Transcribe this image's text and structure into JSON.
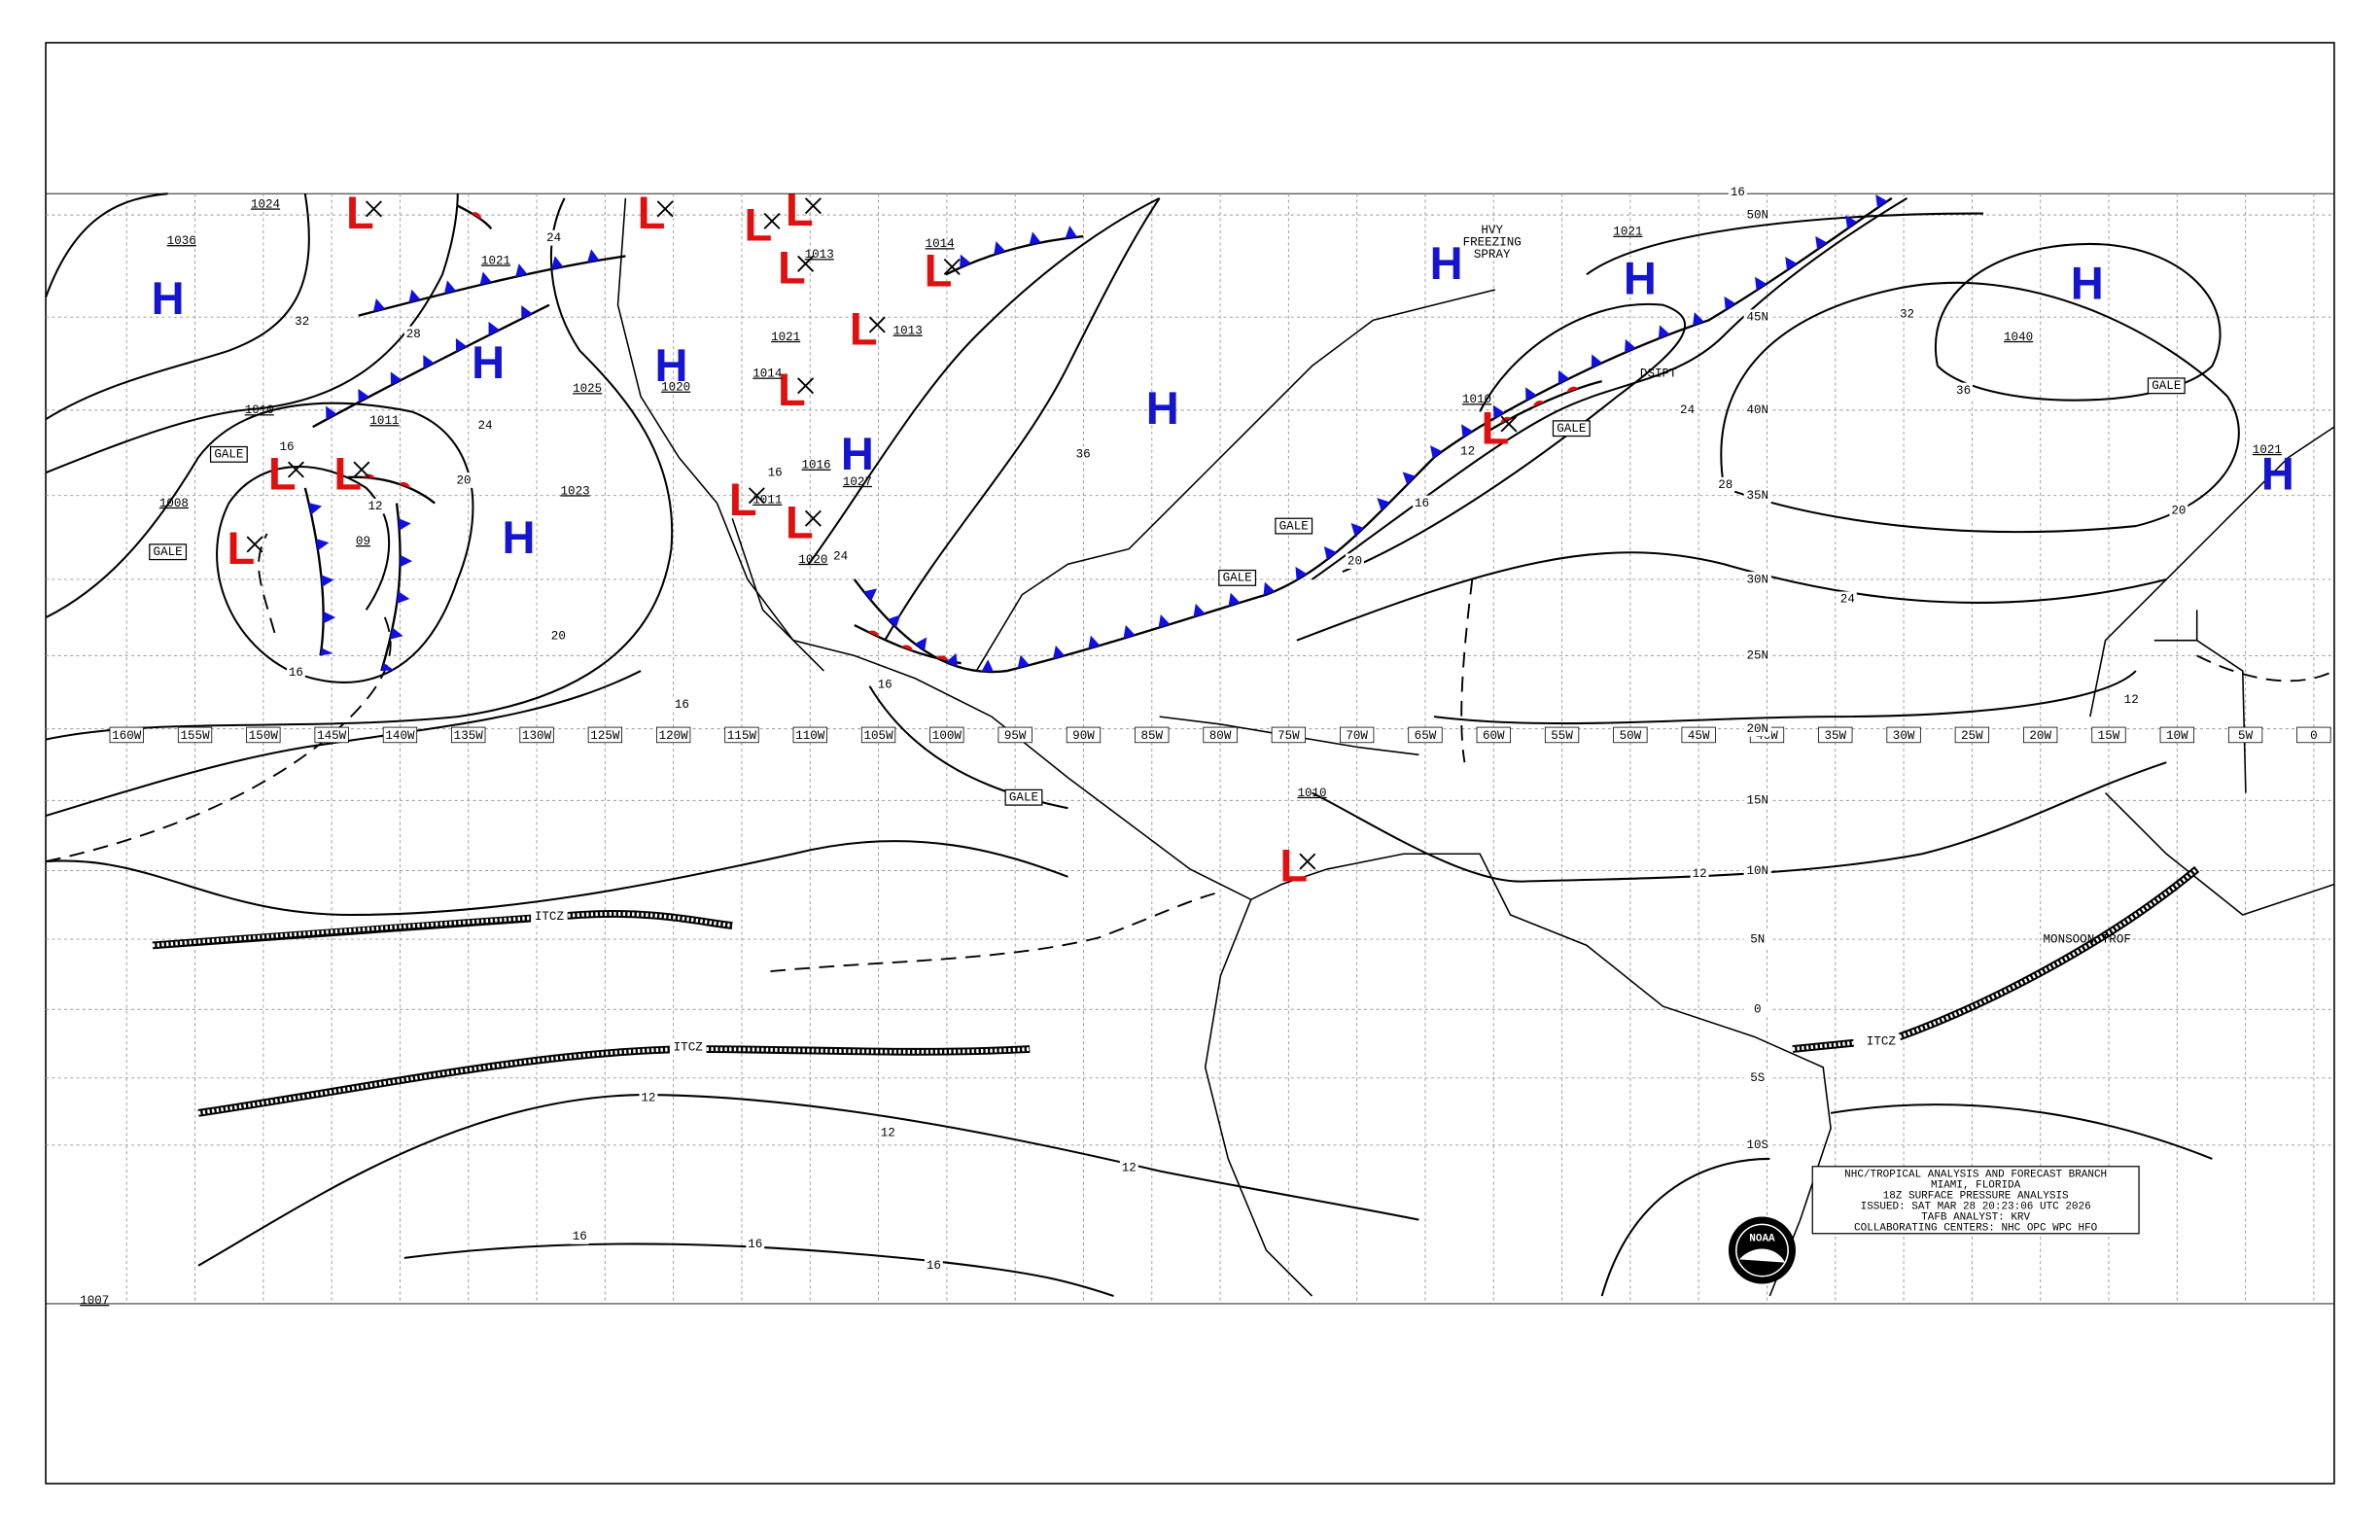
{
  "title_block": {
    "lines": [
      "NHC/TROPICAL ANALYSIS AND FORECAST BRANCH",
      "MIAMI, FLORIDA",
      "18Z SURFACE PRESSURE ANALYSIS",
      "ISSUED: SAT MAR 28 20:23:06 UTC 2026",
      "TAFB ANALYST: KRV",
      "COLLABORATING CENTERS: NHC OPC WPC HFO"
    ]
  },
  "logo_text": "NOAA",
  "longitude_labels": [
    "160W",
    "155W",
    "150W",
    "145W",
    "140W",
    "135W",
    "130W",
    "125W",
    "120W",
    "115W",
    "110W",
    "105W",
    "100W",
    "95W",
    "90W",
    "85W",
    "80W",
    "75W",
    "70W",
    "65W",
    "60W",
    "55W",
    "50W",
    "45W",
    "40W",
    "35W",
    "30W",
    "25W",
    "20W",
    "15W",
    "10W",
    "5W",
    "0"
  ],
  "latitude_labels": [
    "50N",
    "45N",
    "40N",
    "35N",
    "30N",
    "25N",
    "20N",
    "15N",
    "10N",
    "5N",
    "0",
    "5S",
    "10S"
  ],
  "highs": [
    "H",
    "H",
    "H",
    "H",
    "H",
    "H",
    "H",
    "H",
    "H",
    "H"
  ],
  "lows": [
    "L",
    "L",
    "L",
    "L",
    "L",
    "L",
    "L",
    "L",
    "L",
    "L",
    "L",
    "L",
    "L",
    "L",
    "L"
  ],
  "pressure_labels": [
    "1024",
    "1036",
    "1021",
    "1010",
    "1011",
    "1008",
    "09",
    "1025",
    "1023",
    "1020",
    "1021",
    "1014",
    "1011",
    "1016",
    "1027",
    "1013",
    "1014",
    "1013",
    "1020",
    "1010",
    "1021",
    "1040",
    "1021",
    "1010",
    "1007"
  ],
  "isobar_labels": [
    "32",
    "28",
    "24",
    "20",
    "16",
    "16",
    "20",
    "16",
    "24",
    "16",
    "24",
    "16",
    "12",
    "12",
    "16",
    "20",
    "24",
    "28",
    "32",
    "36",
    "24",
    "20",
    "12",
    "12",
    "12",
    "12",
    "12",
    "16",
    "16",
    "16",
    "16",
    "36"
  ],
  "annotations": {
    "gale": [
      "GALE",
      "GALE",
      "GALE",
      "GALE",
      "GALE",
      "GALE",
      "GALE"
    ],
    "itcz": [
      "ITCZ",
      "ITCZ",
      "ITCZ"
    ],
    "monsoon": "MONSOON TROF",
    "dsipt": "DSIPT",
    "spray": [
      "HVY",
      "FREEZING",
      "SPRAY"
    ]
  }
}
